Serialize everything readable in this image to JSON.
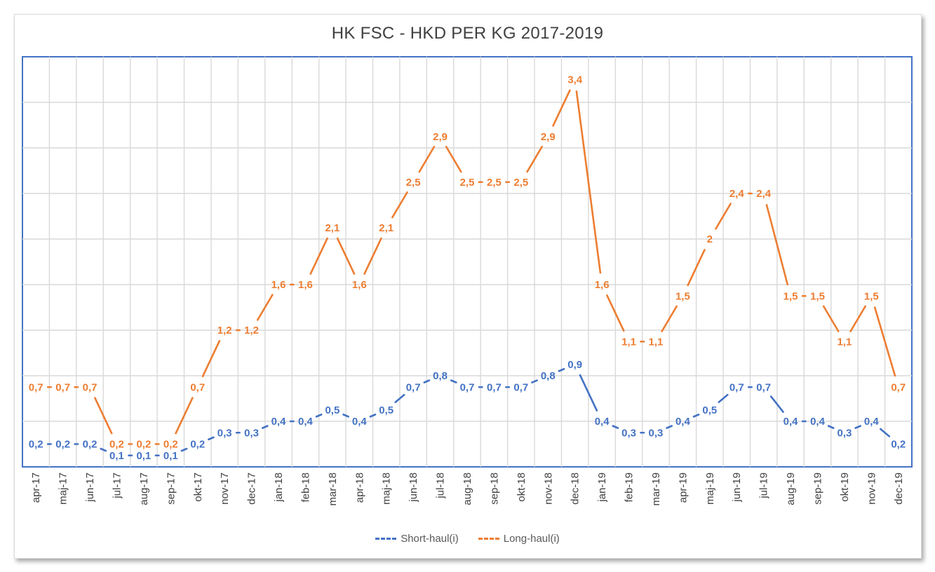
{
  "chart_data": {
    "type": "line",
    "title": "HK FSC - HKD PER KG 2017-2019",
    "xlabel": "",
    "ylabel": "",
    "ylim": [
      0,
      3.6
    ],
    "grid": true,
    "legend_position": "bottom",
    "categories": [
      "apr-17",
      "maj-17",
      "jun-17",
      "jul-17",
      "aug-17",
      "sep-17",
      "okt-17",
      "nov-17",
      "dec-17",
      "jan-18",
      "feb-18",
      "mar-18",
      "apr-18",
      "maj-18",
      "jun-18",
      "jul-18",
      "aug-18",
      "sep-18",
      "okt-18",
      "nov-18",
      "dec-18",
      "jan-19",
      "feb-19",
      "mar-19",
      "apr-19",
      "maj-19",
      "jun-19",
      "jul-19",
      "aug-19",
      "sep-19",
      "okt-19",
      "nov-19",
      "dec-19"
    ],
    "series": [
      {
        "name": "Short-haul(i)",
        "color": "#4472c4",
        "values": [
          0.2,
          0.2,
          0.2,
          0.1,
          0.1,
          0.1,
          0.2,
          0.3,
          0.3,
          0.4,
          0.4,
          0.5,
          0.4,
          0.5,
          0.7,
          0.8,
          0.7,
          0.7,
          0.7,
          0.8,
          0.9,
          0.4,
          0.3,
          0.3,
          0.4,
          0.5,
          0.7,
          0.7,
          0.4,
          0.4,
          0.3,
          0.4,
          0.2
        ],
        "labels": [
          "0,2",
          "0,2",
          "0,2",
          "0,1",
          "0,1",
          "0,1",
          "0,2",
          "0,3",
          "0,3",
          "0,4",
          "0,4",
          "0,5",
          "0,4",
          "0,5",
          "0,7",
          "0,8",
          "0,7",
          "0,7",
          "0,7",
          "0,8",
          "0,9",
          "0,4",
          "0,3",
          "0,3",
          "0,4",
          "0,5",
          "0,7",
          "0,7",
          "0,4",
          "0,4",
          "0,3",
          "0,4",
          "0,2"
        ]
      },
      {
        "name": "Long-haul(i)",
        "color": "#ed7d31",
        "values": [
          0.7,
          0.7,
          0.7,
          0.2,
          0.2,
          0.2,
          0.7,
          1.2,
          1.2,
          1.6,
          1.6,
          2.1,
          1.6,
          2.1,
          2.5,
          2.9,
          2.5,
          2.5,
          2.5,
          2.9,
          3.4,
          1.6,
          1.1,
          1.1,
          1.5,
          2.0,
          2.4,
          2.4,
          1.5,
          1.5,
          1.1,
          1.5,
          0.7
        ],
        "labels": [
          "0,7",
          "0,7",
          "0,7",
          "0,2",
          "0,2",
          "0,2",
          "0,7",
          "1,2",
          "1,2",
          "1,6",
          "1,6",
          "2,1",
          "1,6",
          "2,1",
          "2,5",
          "2,9",
          "2,5",
          "2,5",
          "2,5",
          "2,9",
          "3,4",
          "1,6",
          "1,1",
          "1,1",
          "1,5",
          "2",
          "2,4",
          "2,4",
          "1,5",
          "1,5",
          "1,1",
          "1,5",
          "0,7"
        ]
      }
    ]
  }
}
